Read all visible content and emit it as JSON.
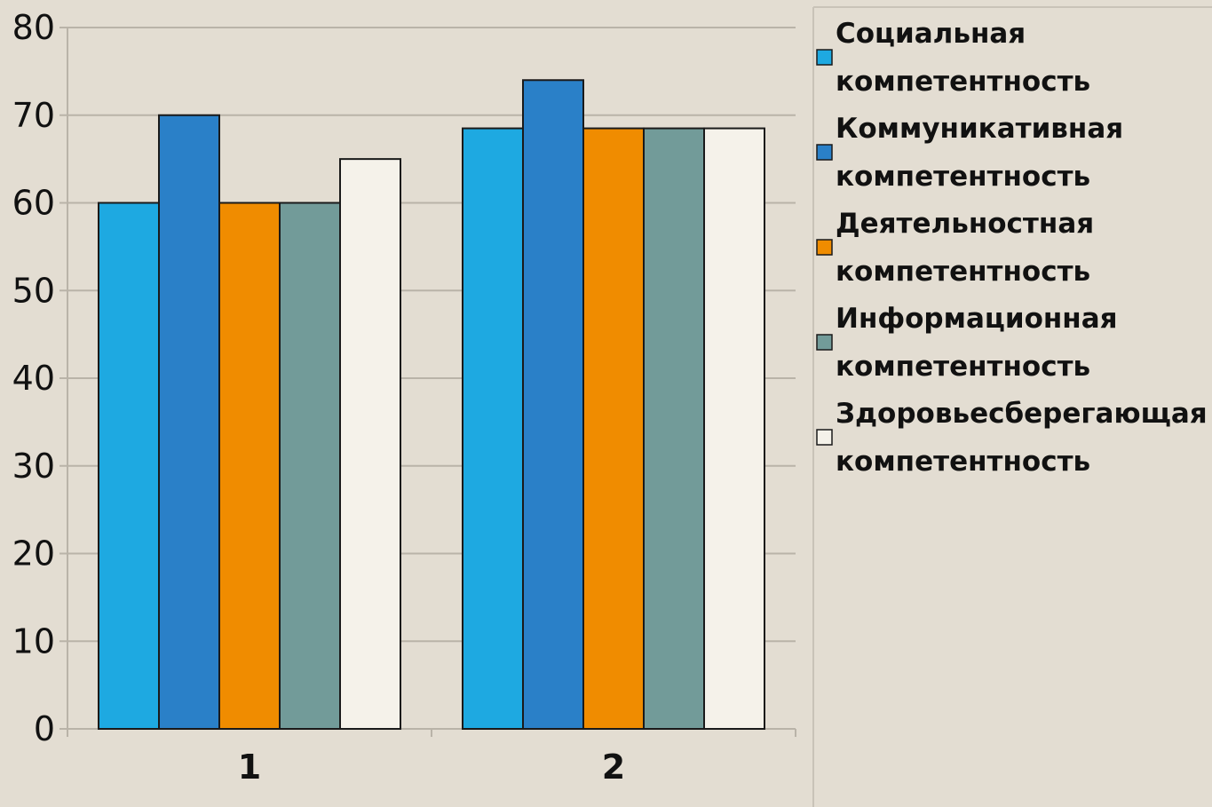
{
  "chart_data": {
    "type": "bar",
    "title": "",
    "xlabel": "",
    "ylabel": "",
    "categories": [
      "1",
      "2"
    ],
    "ylim": [
      0,
      80
    ],
    "yticks": [
      0,
      10,
      20,
      30,
      40,
      50,
      60,
      70,
      80
    ],
    "grid": true,
    "legend_position": "right",
    "series": [
      {
        "name": "Социальная компетентность",
        "legend_lines": [
          "Социальная",
          "компетентность"
        ],
        "color": "#1ea9e1",
        "values": [
          60,
          68.5
        ]
      },
      {
        "name": "Коммуникативная компетентность",
        "legend_lines": [
          "Коммуникативная",
          "компетентность"
        ],
        "color": "#2a80c8",
        "values": [
          70,
          74
        ]
      },
      {
        "name": "Деятельностная компетентность",
        "legend_lines": [
          "Деятельностная",
          "компетентность"
        ],
        "color": "#f08c00",
        "values": [
          60,
          68.5
        ]
      },
      {
        "name": "Информационная компетентность",
        "legend_lines": [
          "Информационная",
          "компетентность"
        ],
        "color": "#729b99",
        "values": [
          60,
          68.5
        ]
      },
      {
        "name": "Здоровьесберегающая компетентность",
        "legend_lines": [
          "Здоровьесберегающая",
          "компетентность"
        ],
        "color": "#f5f2ea",
        "values": [
          65,
          68.5
        ]
      }
    ]
  }
}
